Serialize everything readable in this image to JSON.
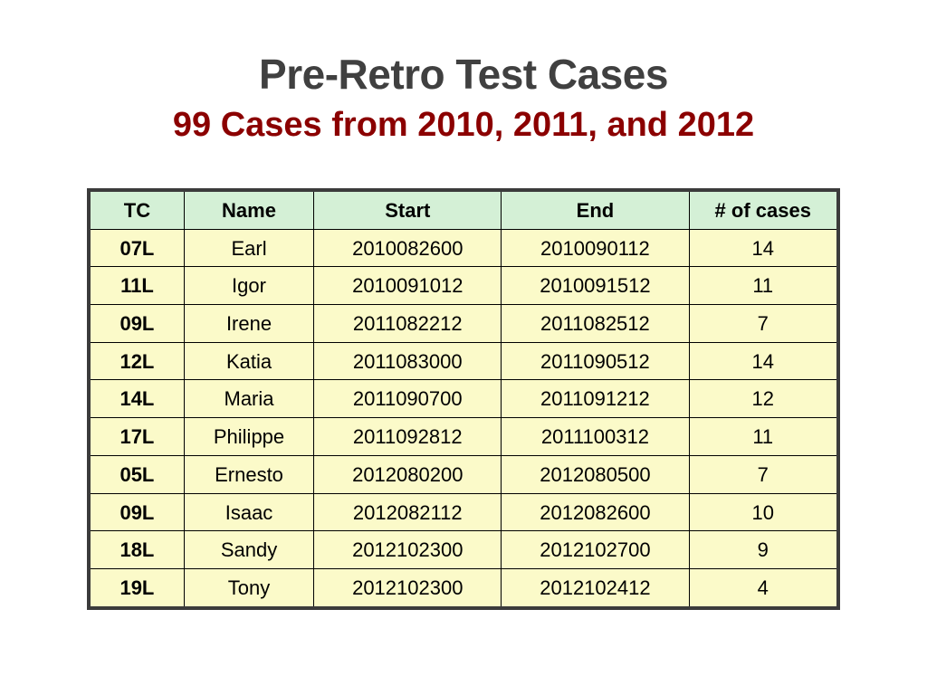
{
  "title": "Pre-Retro Test Cases",
  "subtitle": "99 Cases from 2010, 2011, and 2012",
  "colors": {
    "title": "#404040",
    "subtitle": "#8b0000",
    "header_bg": "#d4f0d6",
    "row_bg": "#fbfac9",
    "border": "#000000",
    "outer_border": "#3b3b3b"
  },
  "table": {
    "columns": [
      "TC",
      "Name",
      "Start",
      "End",
      "# of cases"
    ],
    "rows": [
      [
        "07L",
        "Earl",
        "2010082600",
        "2010090112",
        "14"
      ],
      [
        "11L",
        "Igor",
        "2010091012",
        "2010091512",
        "11"
      ],
      [
        "09L",
        "Irene",
        "2011082212",
        "2011082512",
        "7"
      ],
      [
        "12L",
        "Katia",
        "2011083000",
        "2011090512",
        "14"
      ],
      [
        "14L",
        "Maria",
        "2011090700",
        "2011091212",
        "12"
      ],
      [
        "17L",
        "Philippe",
        "2011092812",
        "2011100312",
        "11"
      ],
      [
        "05L",
        "Ernesto",
        "2012080200",
        "2012080500",
        "7"
      ],
      [
        "09L",
        "Isaac",
        "2012082112",
        "2012082600",
        "10"
      ],
      [
        "18L",
        "Sandy",
        "2012102300",
        "2012102700",
        "9"
      ],
      [
        "19L",
        "Tony",
        "2012102300",
        "2012102412",
        "4"
      ]
    ]
  }
}
